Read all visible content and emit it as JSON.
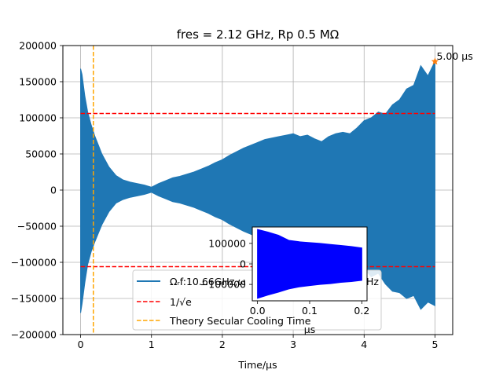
{
  "chart_data": [
    {
      "type": "line",
      "role": "main",
      "title": "fres = 2.12 GHz, Rp 0.5 MΩ",
      "xlabel": "Time/μs",
      "ylabel": "",
      "xlim": [
        -0.25,
        5.25
      ],
      "ylim": [
        -200000,
        200000
      ],
      "xticks": [
        0,
        1,
        2,
        3,
        4,
        5
      ],
      "xtick_labels": [
        "0",
        "1",
        "2",
        "3",
        "4",
        "5"
      ],
      "yticks": [
        -200000,
        -150000,
        -100000,
        -50000,
        0,
        50000,
        100000,
        150000,
        200000
      ],
      "ytick_labels": [
        "−200000",
        "−150000",
        "−100000",
        "−50000",
        "0",
        "50000",
        "100000",
        "150000",
        "200000"
      ],
      "grid": true,
      "legend_location": "lower-center",
      "series": [
        {
          "name": "Ω_r f:10.66GHz,ω_z:2.12 GHz",
          "label_visible": "Ωᵣf:10.66GHz,ω",
          "label_tail_visible": "Hz",
          "color": "#1f77b4",
          "kind": "oscillation-envelope",
          "envelope": {
            "t": [
              0,
              0.02,
              0.06,
              0.1,
              0.15,
              0.2,
              0.3,
              0.4,
              0.5,
              0.6,
              0.7,
              0.8,
              0.9,
              1.0,
              1.1,
              1.2,
              1.3,
              1.4,
              1.5,
              1.6,
              1.7,
              1.8,
              1.9,
              2.0,
              2.1,
              2.2,
              2.3,
              2.4,
              2.5,
              2.6,
              2.7,
              2.8,
              2.9,
              3.0,
              3.1,
              3.2,
              3.3,
              3.4,
              3.5,
              3.6,
              3.7,
              3.8,
              3.9,
              4.0,
              4.1,
              4.2,
              4.3,
              4.4,
              4.5,
              4.6,
              4.7,
              4.8,
              4.9,
              5.0
            ],
            "upper": [
              168000,
              160000,
              130000,
              108000,
              90000,
              75000,
              50000,
              32000,
              20000,
              14000,
              11000,
              9000,
              7000,
              4000,
              9000,
              13000,
              17000,
              19000,
              22000,
              25000,
              29000,
              33000,
              38000,
              42000,
              48000,
              53000,
              58000,
              62000,
              66000,
              70000,
              72000,
              74000,
              76000,
              78000,
              74000,
              76000,
              71000,
              67000,
              74000,
              78000,
              80000,
              78000,
              86000,
              96000,
              100000,
              108000,
              105000,
              118000,
              125000,
              140000,
              145000,
              172000,
              158000,
              178000
            ],
            "lower": [
              -170000,
              -158000,
              -128000,
              -103000,
              -85000,
              -72000,
              -48000,
              -30000,
              -18000,
              -13000,
              -10000,
              -8000,
              -6000,
              -3000,
              -8000,
              -12000,
              -16000,
              -18000,
              -21000,
              -24000,
              -28000,
              -32000,
              -37000,
              -41000,
              -47000,
              -52000,
              -57000,
              -61000,
              -65000,
              -68000,
              -71000,
              -73000,
              -76000,
              -78000,
              -74000,
              -77000,
              -74000,
              -68000,
              -80000,
              -85000,
              -90000,
              -94000,
              -100000,
              -108000,
              -120000,
              -115000,
              -130000,
              -140000,
              -142000,
              -150000,
              -146000,
              -165000,
              -155000,
              -160000
            ]
          }
        },
        {
          "name": "1/√e",
          "color": "#ff0000",
          "style": "dashed",
          "y_levels": [
            106000,
            -106000
          ],
          "x_range": [
            0,
            5
          ]
        },
        {
          "name": "Theory Secular Cooling Time",
          "color": "#ffa500",
          "style": "dashed",
          "x_level": 0.18
        }
      ],
      "annotations": [
        {
          "text": "5.00 μs",
          "x": 5.0,
          "y": 178000,
          "marker": "star",
          "marker_color": "#ff7f0e"
        }
      ]
    },
    {
      "type": "line",
      "role": "inset",
      "xlabel": "μs",
      "xlim": [
        -0.01,
        0.21
      ],
      "ylim": [
        -180000,
        180000
      ],
      "xticks": [
        0.0,
        0.1,
        0.2
      ],
      "xtick_labels": [
        "0.0",
        "0.1",
        "0.2"
      ],
      "yticks": [
        -100000,
        0,
        100000
      ],
      "ytick_labels": [
        "−100000",
        "0",
        "100000"
      ],
      "grid": false,
      "series": [
        {
          "name": "",
          "color": "#0000ff",
          "kind": "oscillation-envelope",
          "envelope": {
            "t": [
              0.0,
              0.02,
              0.04,
              0.06,
              0.08,
              0.1,
              0.12,
              0.14,
              0.16,
              0.18,
              0.2
            ],
            "upper": [
              168000,
              155000,
              140000,
              115000,
              108000,
              104000,
              100000,
              95000,
              90000,
              85000,
              78000
            ],
            "lower": [
              -168000,
              -152000,
              -138000,
              -122000,
              -112000,
              -106000,
              -100000,
              -96000,
              -90000,
              -86000,
              -80000
            ]
          }
        }
      ]
    }
  ]
}
